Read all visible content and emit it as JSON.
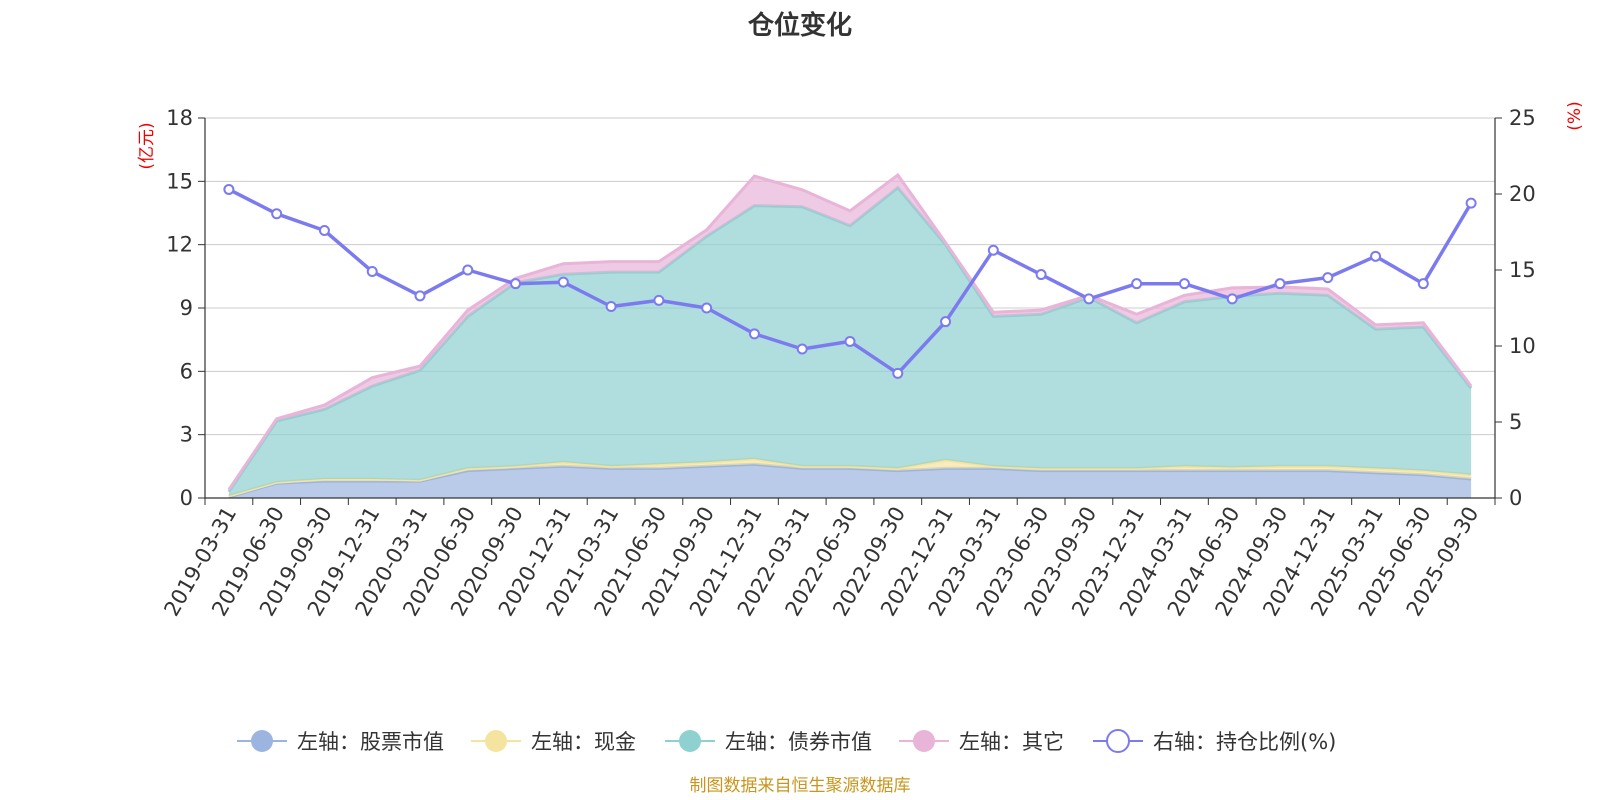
{
  "chart_data": {
    "type": "area",
    "title": "仓位变化",
    "left_axis": {
      "unit": "(亿元)",
      "min": 0,
      "max": 18,
      "ticks": [
        0,
        3,
        6,
        9,
        12,
        15,
        18
      ]
    },
    "right_axis": {
      "unit": "(%)",
      "min": 0,
      "max": 25,
      "ticks": [
        0,
        5,
        10,
        15,
        20,
        25
      ]
    },
    "categories": [
      "2019-03-31",
      "2019-06-30",
      "2019-09-30",
      "2019-12-31",
      "2020-03-31",
      "2020-06-30",
      "2020-09-30",
      "2020-12-31",
      "2021-03-31",
      "2021-06-30",
      "2021-09-30",
      "2021-12-31",
      "2022-03-31",
      "2022-06-30",
      "2022-09-30",
      "2022-12-31",
      "2023-03-31",
      "2023-06-30",
      "2023-09-30",
      "2023-12-31",
      "2024-03-31",
      "2024-06-30",
      "2024-09-30",
      "2024-12-31",
      "2025-03-31",
      "2025-06-30",
      "2025-09-30"
    ],
    "series": [
      {
        "name": "左轴：股票市值",
        "axis": "left",
        "stacked": true,
        "color": "#9bb5e0",
        "values": [
          0.05,
          0.7,
          0.8,
          0.8,
          0.8,
          1.3,
          1.4,
          1.5,
          1.4,
          1.4,
          1.5,
          1.6,
          1.4,
          1.4,
          1.3,
          1.4,
          1.4,
          1.3,
          1.3,
          1.3,
          1.3,
          1.3,
          1.3,
          1.3,
          1.2,
          1.1,
          0.9
        ]
      },
      {
        "name": "左轴：现金",
        "axis": "left",
        "stacked": true,
        "color": "#f5e3a0",
        "values": [
          0.05,
          0.05,
          0.1,
          0.1,
          0.05,
          0.1,
          0.1,
          0.2,
          0.1,
          0.2,
          0.2,
          0.25,
          0.1,
          0.1,
          0.1,
          0.4,
          0.1,
          0.1,
          0.1,
          0.1,
          0.2,
          0.15,
          0.2,
          0.2,
          0.2,
          0.2,
          0.2
        ]
      },
      {
        "name": "左轴：债券市值",
        "axis": "left",
        "stacked": true,
        "color": "#8fd0d0",
        "values": [
          0.2,
          2.9,
          3.3,
          4.4,
          5.2,
          7.2,
          8.7,
          8.9,
          9.2,
          9.1,
          10.7,
          12.0,
          12.3,
          11.4,
          13.3,
          10.2,
          7.1,
          7.3,
          8.1,
          6.9,
          7.8,
          8.1,
          8.2,
          8.1,
          6.6,
          6.8,
          4.1
        ]
      },
      {
        "name": "左轴：其它",
        "axis": "left",
        "stacked": true,
        "color": "#e8b4d8",
        "values": [
          0.1,
          0.1,
          0.2,
          0.4,
          0.2,
          0.3,
          0.2,
          0.5,
          0.5,
          0.5,
          0.3,
          1.4,
          0.8,
          0.7,
          0.6,
          0.1,
          0.2,
          0.2,
          0.1,
          0.4,
          0.3,
          0.4,
          0.3,
          0.3,
          0.2,
          0.2,
          0.1
        ]
      },
      {
        "name": "右轴：持仓比例(%)",
        "axis": "right",
        "stacked": false,
        "color": "#7b7bef",
        "values": [
          20.3,
          18.7,
          17.6,
          14.9,
          13.3,
          15.0,
          14.1,
          14.2,
          12.6,
          13.0,
          12.5,
          10.8,
          9.8,
          10.3,
          8.2,
          11.6,
          16.3,
          14.7,
          13.1,
          14.1,
          14.1,
          13.1,
          14.1,
          14.5,
          15.9,
          14.1,
          19.4
        ]
      }
    ]
  },
  "footer": {
    "source": "制图数据来自恒生聚源数据库"
  }
}
